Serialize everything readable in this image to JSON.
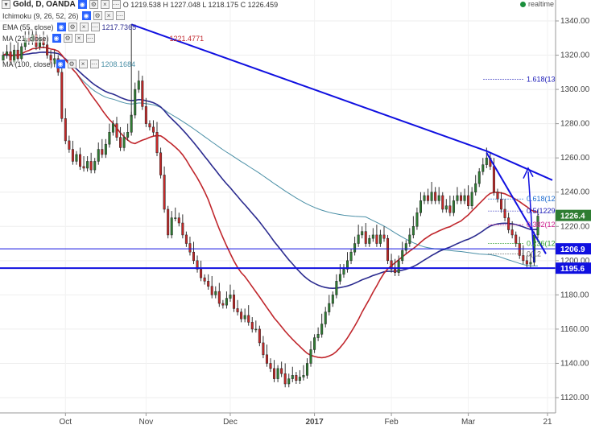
{
  "header": {
    "title": "Gold, D, OANDA",
    "ohlc": "O 1219.538 H 1227.048 L 1218.175 C 1226.459",
    "realtime": "realtime"
  },
  "indicators": [
    {
      "label": "Ichimoku (9, 26, 52, 26)",
      "value": ""
    },
    {
      "label": "EMA (55, close)",
      "value": "1217.7365",
      "color": "#2b2b8f"
    },
    {
      "label": "MA (21, close)",
      "value": "1221.4771",
      "color": "#c0262c"
    },
    {
      "label": "MA (100, close)",
      "value": "1208.1684",
      "color": "#4a8fa6"
    }
  ],
  "colors": {
    "up": "#2e7d32",
    "down": "#c62828",
    "trendline": "#1010e0",
    "ema55": "#2b2b8f",
    "ma21": "#c0262c",
    "ma100": "#4a8fa6",
    "price_badge": "#2e7d32",
    "support_badge": "#1010e0"
  },
  "chart_data": {
    "type": "candlestick",
    "instrument": "Gold, D, OANDA",
    "ylim": [
      1115,
      1345
    ],
    "y_ticks": [
      "1120.00",
      "1140.00",
      "1160.00",
      "1180.00",
      "1200.00",
      "1220.00",
      "1240.00",
      "1260.00",
      "1280.00",
      "1300.00",
      "1320.00",
      "1340.00"
    ],
    "x_ticks": [
      "Oct",
      "Nov",
      "Dec",
      "2017",
      "Feb",
      "Mar",
      "21"
    ],
    "price_labels": {
      "last": "1226.4",
      "resistance": "1206.9",
      "support": "1195.6"
    },
    "horizontal_levels": [
      {
        "value": 1206.9,
        "label": "1206.9"
      },
      {
        "value": 1195.6,
        "label": "1195.6"
      }
    ],
    "fib_labels": [
      "1.618(13",
      "0.618(12",
      "0.5(1229",
      "0.382(12",
      "0.236(12",
      "0(12"
    ],
    "closes": [
      1320,
      1322,
      1316,
      1323,
      1318,
      1325,
      1330,
      1328,
      1332,
      1325,
      1330,
      1326,
      1320,
      1315,
      1318,
      1310,
      1283,
      1270,
      1265,
      1258,
      1262,
      1255,
      1254,
      1258,
      1253,
      1258,
      1265,
      1262,
      1268,
      1275,
      1280,
      1272,
      1266,
      1272,
      1275,
      1285,
      1300,
      1305,
      1290,
      1280,
      1278,
      1275,
      1263,
      1250,
      1230,
      1215,
      1225,
      1225,
      1222,
      1215,
      1210,
      1205,
      1200,
      1195,
      1190,
      1188,
      1185,
      1180,
      1182,
      1175,
      1174,
      1178,
      1180,
      1172,
      1170,
      1166,
      1168,
      1164,
      1160,
      1160,
      1152,
      1145,
      1140,
      1137,
      1131,
      1137,
      1134,
      1128,
      1131,
      1133,
      1130,
      1132,
      1133,
      1140,
      1148,
      1155,
      1157,
      1163,
      1170,
      1175,
      1180,
      1188,
      1192,
      1195,
      1200,
      1205,
      1210,
      1215,
      1217,
      1210,
      1213,
      1215,
      1210,
      1215,
      1213,
      1200,
      1195,
      1193,
      1200,
      1206,
      1210,
      1215,
      1220,
      1228,
      1235,
      1238,
      1235,
      1240,
      1235,
      1238,
      1230,
      1232,
      1228,
      1235,
      1238,
      1235,
      1238,
      1232,
      1240,
      1245,
      1252,
      1256,
      1260,
      1255,
      1240,
      1236,
      1230,
      1225,
      1218,
      1215,
      1210,
      1203,
      1200,
      1198,
      1199,
      1215,
      1226
    ]
  }
}
